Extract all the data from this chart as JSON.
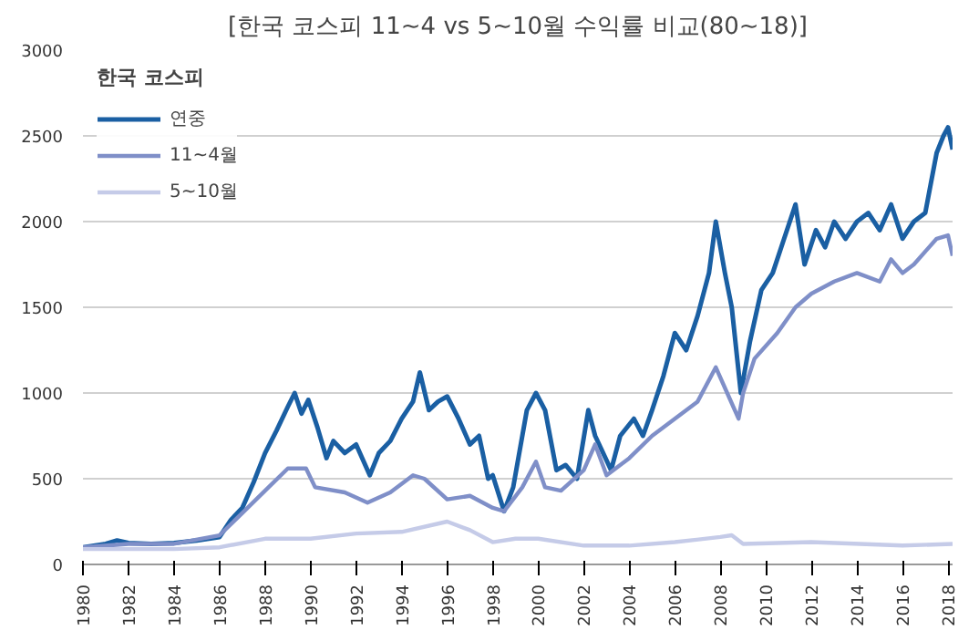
{
  "chart_data": {
    "type": "line",
    "title": "[한국 코스피 11~4 vs 5~10월 수익률 비교(80~18)]",
    "legend_title": "한국 코스피",
    "xlim": [
      1980,
      2018.2
    ],
    "xticks": [
      1980,
      1982,
      1984,
      1986,
      1988,
      1990,
      1992,
      1994,
      1996,
      1998,
      2000,
      2002,
      2004,
      2006,
      2008,
      2010,
      2012,
      2014,
      2016,
      2018
    ],
    "ylim": [
      0,
      3000
    ],
    "yticks": [
      0,
      500,
      1000,
      1500,
      2000,
      2500,
      3000
    ],
    "grid": "y",
    "legend": "top left",
    "line_style": "solid",
    "series": [
      {
        "name": "연중",
        "color": "#1a5fa3",
        "x": [
          1980,
          1981,
          1981.5,
          1982,
          1983,
          1984,
          1985,
          1986,
          1986.5,
          1987,
          1987.5,
          1988,
          1988.5,
          1989,
          1989.3,
          1989.6,
          1989.9,
          1990.3,
          1990.7,
          1991,
          1991.5,
          1992,
          1992.6,
          1993,
          1993.5,
          1994,
          1994.5,
          1994.8,
          1995.2,
          1995.6,
          1996,
          1996.5,
          1997,
          1997.4,
          1997.8,
          1998,
          1998.5,
          1998.9,
          1999.5,
          1999.9,
          2000.3,
          2000.8,
          2001.2,
          2001.7,
          2002.2,
          2002.5,
          2003.2,
          2003.6,
          2004.2,
          2004.6,
          2005,
          2005.5,
          2006,
          2006.5,
          2007,
          2007.5,
          2007.8,
          2008.2,
          2008.5,
          2008.9,
          2009.3,
          2009.8,
          2010.3,
          2010.8,
          2011.3,
          2011.7,
          2012.2,
          2012.6,
          2013,
          2013.5,
          2014,
          2014.5,
          2015,
          2015.5,
          2016,
          2016.5,
          2017,
          2017.5,
          2017.8,
          2018,
          2018.2
        ],
        "values": [
          100,
          120,
          140,
          125,
          120,
          125,
          140,
          160,
          260,
          330,
          480,
          650,
          780,
          920,
          1000,
          880,
          960,
          800,
          620,
          720,
          650,
          700,
          520,
          650,
          720,
          850,
          950,
          1120,
          900,
          950,
          980,
          850,
          700,
          750,
          500,
          520,
          310,
          450,
          900,
          1000,
          900,
          550,
          580,
          500,
          900,
          750,
          550,
          750,
          850,
          750,
          900,
          1100,
          1350,
          1250,
          1450,
          1700,
          2000,
          1700,
          1500,
          1000,
          1300,
          1600,
          1700,
          1900,
          2100,
          1750,
          1950,
          1850,
          2000,
          1900,
          2000,
          2050,
          1950,
          2100,
          1900,
          2000,
          2050,
          2400,
          2500,
          2550,
          2420
        ]
      },
      {
        "name": "11~4월",
        "color": "#7f8fc8",
        "x": [
          1980,
          1982,
          1984,
          1986,
          1987,
          1988,
          1989,
          1989.8,
          1990.2,
          1991.5,
          1992.5,
          1993.5,
          1994.5,
          1995,
          1996,
          1997,
          1998,
          1998.5,
          1999.3,
          1999.9,
          2000.3,
          2001,
          2002,
          2002.5,
          2003,
          2004,
          2005,
          2006,
          2007,
          2007.8,
          2008.3,
          2008.8,
          2009,
          2009.5,
          2010.5,
          2011.3,
          2012,
          2013,
          2014,
          2015,
          2015.5,
          2016,
          2016.5,
          2017.5,
          2018,
          2018.2
        ],
        "values": [
          100,
          120,
          120,
          170,
          300,
          430,
          560,
          560,
          450,
          420,
          360,
          420,
          520,
          500,
          380,
          400,
          330,
          310,
          450,
          600,
          450,
          430,
          550,
          700,
          520,
          620,
          750,
          850,
          950,
          1150,
          1000,
          850,
          1000,
          1200,
          1350,
          1500,
          1580,
          1650,
          1700,
          1650,
          1780,
          1700,
          1750,
          1900,
          1920,
          1800
        ]
      },
      {
        "name": "5~10월",
        "color": "#c5cbe8",
        "x": [
          1980,
          1984,
          1986,
          1988,
          1990,
          1992,
          1994,
          1996,
          1997,
          1998,
          1999,
          2000,
          2002,
          2004,
          2006,
          2008,
          2008.5,
          2009,
          2012,
          2016,
          2018.2
        ],
        "values": [
          90,
          90,
          100,
          150,
          150,
          180,
          190,
          250,
          200,
          130,
          150,
          150,
          110,
          110,
          130,
          160,
          170,
          120,
          130,
          110,
          120
        ]
      }
    ]
  }
}
